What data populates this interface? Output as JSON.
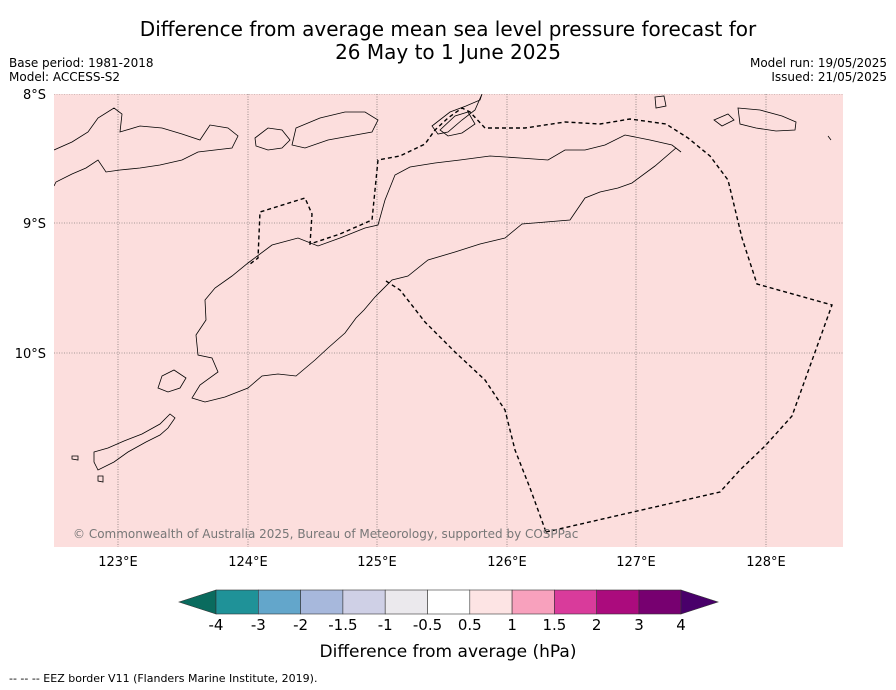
{
  "title_line1": "Difference from average mean sea level pressure forecast for",
  "title_line2": "26 May to 1 June 2025",
  "base_period": "Base period: 1981-2018",
  "model": "Model: ACCESS-S2",
  "model_run": "Model run: 19/05/2025",
  "issued": "Issued: 21/05/2025",
  "map": {
    "background_color": "#fcdedd",
    "lat_labels": [
      "8°S",
      "9°S",
      "10°S"
    ],
    "lon_labels": [
      "123°E",
      "124°E",
      "125°E",
      "126°E",
      "127°E",
      "128°E"
    ],
    "copyright": "© Commonwealth of Australia 2025, Bureau of Meteorology, supported by COSPPac"
  },
  "colorbar": {
    "title": "Difference from average (hPa)",
    "labels": [
      "-4",
      "-3",
      "-2",
      "-1.5",
      "-1",
      "-0.5",
      "0.5",
      "1",
      "1.5",
      "2",
      "3",
      "4"
    ],
    "colors": [
      "#0a6b5e",
      "#1f9298",
      "#63a6cb",
      "#a7b8dc",
      "#cfd0e6",
      "#ebe9ed",
      "#ffffff",
      "#fde4e4",
      "#f8a1bd",
      "#d93b9b",
      "#ab0b7d",
      "#770070",
      "#49006a"
    ]
  },
  "footer": "--  --  -- EEZ border V11 (Flanders Marine Institute, 2019)."
}
